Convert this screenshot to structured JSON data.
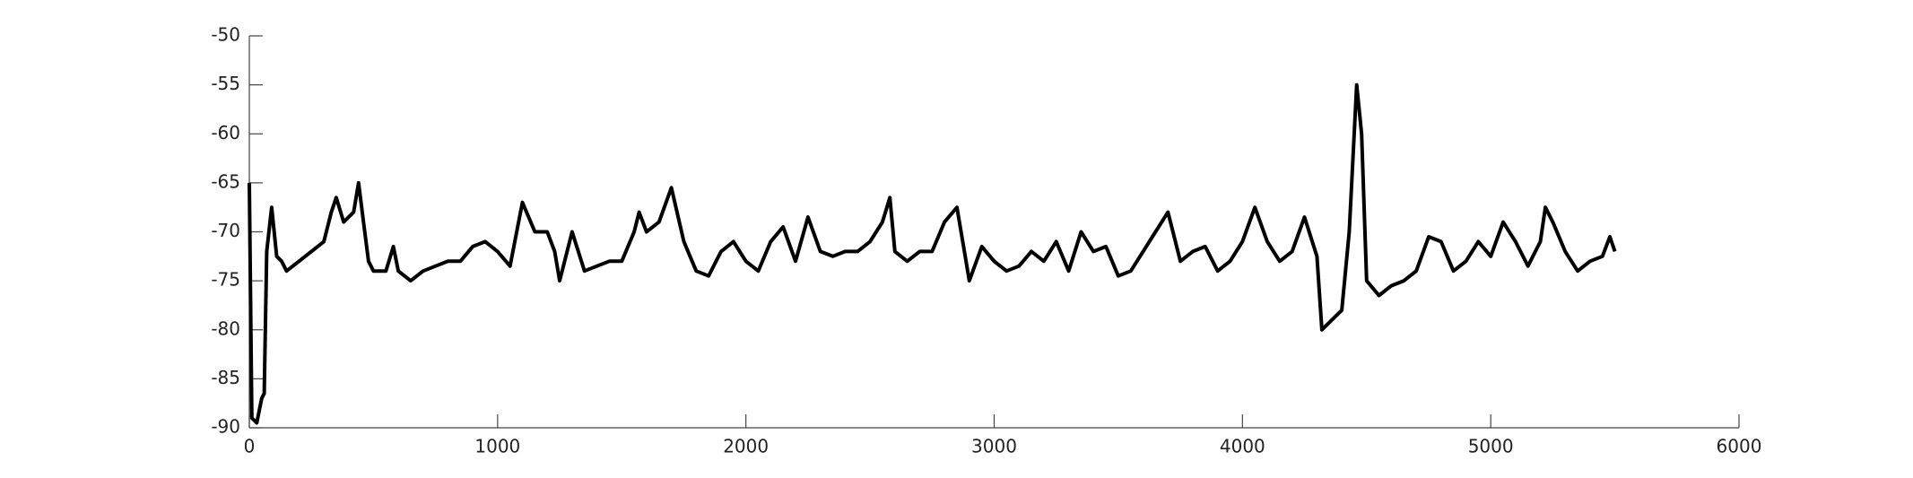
{
  "chart_data": {
    "type": "line",
    "x": [
      0,
      10,
      30,
      50,
      60,
      70,
      90,
      110,
      130,
      150,
      200,
      250,
      300,
      330,
      350,
      380,
      420,
      440,
      460,
      480,
      500,
      550,
      580,
      600,
      650,
      700,
      750,
      800,
      850,
      900,
      950,
      1000,
      1050,
      1100,
      1150,
      1200,
      1230,
      1250,
      1300,
      1350,
      1400,
      1450,
      1500,
      1550,
      1570,
      1600,
      1650,
      1700,
      1750,
      1800,
      1850,
      1900,
      1950,
      2000,
      2050,
      2100,
      2150,
      2200,
      2250,
      2300,
      2350,
      2400,
      2450,
      2500,
      2550,
      2580,
      2600,
      2650,
      2700,
      2750,
      2800,
      2850,
      2900,
      2950,
      3000,
      3050,
      3100,
      3150,
      3200,
      3250,
      3300,
      3350,
      3400,
      3450,
      3500,
      3550,
      3600,
      3650,
      3700,
      3750,
      3800,
      3850,
      3900,
      3950,
      4000,
      4050,
      4100,
      4150,
      4200,
      4250,
      4300,
      4320,
      4360,
      4400,
      4430,
      4460,
      4480,
      4500,
      4550,
      4600,
      4650,
      4700,
      4750,
      4800,
      4850,
      4900,
      4950,
      5000,
      5050,
      5100,
      5150,
      5200,
      5220,
      5250,
      5300,
      5350,
      5400,
      5450,
      5480,
      5500
    ],
    "series": [
      {
        "color": "#000000",
        "values": [
          -65,
          -89,
          -89.5,
          -87,
          -86.5,
          -72,
          -67.5,
          -72.5,
          -73,
          -74,
          -73,
          -72,
          -71,
          -68,
          -66.5,
          -69,
          -68,
          -65,
          -69,
          -73,
          -74,
          -74,
          -71.5,
          -74,
          -75,
          -74,
          -73.5,
          -73,
          -73,
          -71.5,
          -71,
          -72,
          -73.5,
          -67,
          -70,
          -70,
          -72,
          -75,
          -70,
          -74,
          -73.5,
          -73,
          -73,
          -70,
          -68,
          -70,
          -69,
          -65.5,
          -71,
          -74,
          -74.5,
          -72,
          -71,
          -73,
          -74,
          -71,
          -69.5,
          -73,
          -68.5,
          -72,
          -72.5,
          -72,
          -72,
          -71,
          -69,
          -66.5,
          -72,
          -73,
          -72,
          -72,
          -69,
          -67.5,
          -75,
          -71.5,
          -73,
          -74,
          -73.5,
          -72,
          -73,
          -71,
          -74,
          -70,
          -72,
          -71.5,
          -74.5,
          -74,
          -72,
          -70,
          -68,
          -73,
          -72,
          -71.5,
          -74,
          -73,
          -71,
          -67.5,
          -71,
          -73,
          -72,
          -68.5,
          -72.5,
          -80,
          -79,
          -78,
          -70,
          -55,
          -60,
          -75,
          -76.5,
          -75.5,
          -75,
          -74,
          -70.5,
          -71,
          -74,
          -73,
          -71,
          -72.5,
          -69,
          -71,
          -73.5,
          -71,
          -67.5,
          -69,
          -72,
          -74,
          -73,
          -72.5,
          -70.5,
          -72
        ]
      }
    ],
    "xlim": [
      0,
      6000
    ],
    "xticks": [
      0,
      1000,
      2000,
      3000,
      4000,
      5000,
      6000
    ],
    "ylim": [
      -90,
      -50
    ],
    "yticks": [
      -90,
      -85,
      -80,
      -75,
      -70,
      -65,
      -60,
      -55,
      -50
    ]
  }
}
